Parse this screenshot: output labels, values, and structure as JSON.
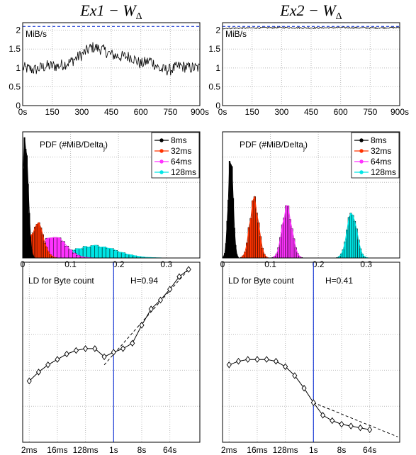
{
  "chart_data": [
    {
      "type": "line",
      "panel": "Ex1 throughput",
      "title": "Ex1 − W_Δ",
      "ylabel": "MiB/s",
      "xlim": [
        0,
        900
      ],
      "ylim": [
        0,
        2.2
      ],
      "xticks": [
        0,
        150,
        300,
        450,
        600,
        750,
        900
      ],
      "xtick_labels": [
        "0s",
        "150",
        "300",
        "450",
        "600",
        "750",
        "900s"
      ],
      "yticks": [
        0,
        0.5,
        1,
        1.5,
        2
      ],
      "ytick_labels": [
        "0",
        "0.5",
        "1",
        "1.5",
        "2"
      ],
      "reference_line": 2.1,
      "series": [
        {
          "x": [
            0,
            60,
            120,
            180,
            240,
            300,
            350,
            400,
            450,
            500,
            550,
            600,
            650,
            700,
            750,
            800,
            850,
            900
          ],
          "y": [
            1.0,
            0.95,
            1.05,
            1.05,
            1.15,
            1.35,
            1.55,
            1.5,
            1.35,
            1.3,
            1.3,
            1.1,
            1.2,
            0.95,
            0.95,
            1.05,
            1.0,
            1.0
          ]
        }
      ]
    },
    {
      "type": "line",
      "panel": "Ex2 throughput",
      "title": "Ex2 − W_Δ",
      "ylabel": "MiB/s",
      "xlim": [
        0,
        900
      ],
      "ylim": [
        0,
        2.2
      ],
      "xticks": [
        0,
        150,
        300,
        450,
        600,
        750,
        900
      ],
      "xtick_labels": [
        "0s",
        "150",
        "300",
        "450",
        "600",
        "750",
        "900s"
      ],
      "yticks": [
        0,
        0.5,
        1,
        1.5,
        2
      ],
      "ytick_labels": [
        "0",
        "0.5",
        "1",
        "1.5",
        "2"
      ],
      "reference_line": 2.1,
      "series": [
        {
          "x": [
            0,
            150,
            300,
            450,
            600,
            750,
            900
          ],
          "y": [
            2.05,
            2.06,
            2.07,
            2.06,
            2.07,
            2.06,
            2.07
          ]
        }
      ]
    },
    {
      "type": "bar",
      "panel": "Ex1 PDF",
      "annotation": "PDF (#MiB/Delta",
      "annotation_sub": "j",
      "annotation_end": ")",
      "xlim": [
        0,
        0.37
      ],
      "xticks": [
        0,
        0.1,
        0.2,
        0.3
      ],
      "xtick_labels": [
        "0",
        "0.1",
        "0.2",
        "0.3"
      ],
      "legend": "top-right",
      "series": [
        {
          "name": "8ms",
          "color": "#000000",
          "marker": "dot",
          "mean": 0.005,
          "sd": 0.006,
          "peak": 1.0
        },
        {
          "name": "32ms",
          "color": "#ff3300",
          "marker": "x",
          "mean": 0.03,
          "sd": 0.013,
          "peak": 0.28
        },
        {
          "name": "64ms",
          "color": "#ff33ff",
          "marker": "diamond",
          "mean": 0.065,
          "sd": 0.025,
          "peak": 0.18
        },
        {
          "name": "128ms",
          "color": "#00e5e5",
          "marker": "star",
          "mean": 0.15,
          "sd": 0.045,
          "peak": 0.1
        }
      ]
    },
    {
      "type": "bar",
      "panel": "Ex2 PDF",
      "annotation": "PDF (#MiB/Delta",
      "annotation_sub": "j",
      "annotation_end": ")",
      "xlim": [
        0,
        0.37
      ],
      "xticks": [
        0,
        0.1,
        0.2,
        0.3
      ],
      "xtick_labels": [
        "0",
        "0.1",
        "0.2",
        "0.3"
      ],
      "legend": "top-right",
      "series": [
        {
          "name": "8ms",
          "color": "#000000",
          "marker": "dot",
          "mean": 0.017,
          "sd": 0.005,
          "peak": 0.82
        },
        {
          "name": "32ms",
          "color": "#ff3300",
          "marker": "x",
          "mean": 0.066,
          "sd": 0.009,
          "peak": 0.48
        },
        {
          "name": "64ms",
          "color": "#ff33ff",
          "marker": "diamond",
          "mean": 0.135,
          "sd": 0.01,
          "peak": 0.42
        },
        {
          "name": "128ms",
          "color": "#00e5e5",
          "marker": "star",
          "mean": 0.27,
          "sd": 0.01,
          "peak": 0.37
        }
      ]
    },
    {
      "type": "line",
      "panel": "Ex1 logscale diagram",
      "annotation": "LD for Byte count",
      "hurst_label": "H=0.94",
      "x_octaves": [
        1,
        2,
        3,
        4,
        5,
        6,
        7,
        8,
        9,
        10,
        11,
        12,
        13,
        14,
        15,
        16,
        17,
        18
      ],
      "xticks": [
        1,
        4,
        7,
        10,
        13,
        16
      ],
      "xtick_labels": [
        "2ms",
        "16ms",
        "128ms",
        "1s",
        "8s",
        "64s"
      ],
      "ylim": [
        0,
        10
      ],
      "vline": 10,
      "series": [
        {
          "y": [
            3.4,
            3.9,
            4.3,
            4.6,
            4.9,
            5.1,
            5.2,
            5.2,
            4.75,
            5.0,
            5.2,
            5.5,
            6.5,
            7.4,
            7.9,
            8.5,
            9.2,
            9.6
          ]
        }
      ],
      "fit_line": [
        [
          9,
          4.3
        ],
        [
          18,
          9.6
        ]
      ]
    },
    {
      "type": "line",
      "panel": "Ex2 logscale diagram",
      "annotation": "LD for Byte count",
      "hurst_label": "H=0.41",
      "x_octaves": [
        1,
        2,
        3,
        4,
        5,
        6,
        7,
        8,
        9,
        10,
        11,
        12,
        13,
        14,
        15,
        16
      ],
      "xticks": [
        1,
        4,
        7,
        10,
        13,
        16
      ],
      "xtick_labels": [
        "2ms",
        "16ms",
        "128ms",
        "1s",
        "8s",
        "64s"
      ],
      "ylim": [
        0,
        10
      ],
      "vline": 10,
      "series": [
        {
          "y": [
            4.3,
            4.5,
            4.6,
            4.6,
            4.6,
            4.5,
            4.2,
            3.7,
            3.0,
            2.2,
            1.5,
            1.2,
            1.0,
            0.9,
            0.8,
            0.7
          ]
        }
      ],
      "fit_line": [
        [
          10,
          2.2
        ],
        [
          19,
          0.3
        ]
      ]
    }
  ]
}
